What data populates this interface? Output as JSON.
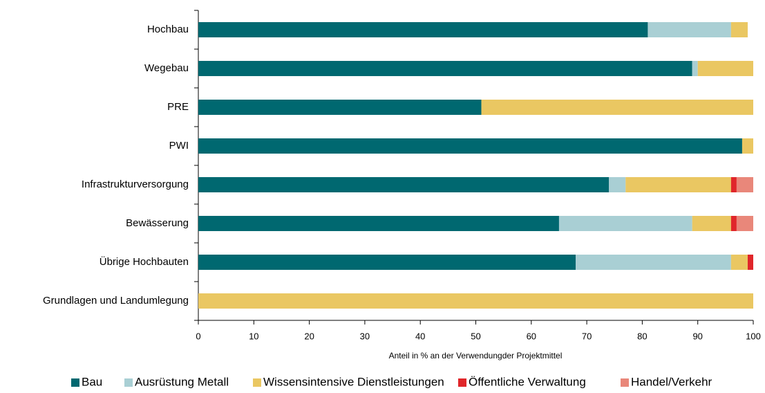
{
  "chart_data": {
    "type": "stacked_barh",
    "xlabel": "Anteil in % an der Verwendungder Projektmittel",
    "categories": [
      "Hochbau",
      "Wegebau",
      "PRE",
      "PWI",
      "Infrastrukturversorgung",
      "Bewässerung",
      "Übrige Hochbauten",
      "Grundlagen und Landumlegung"
    ],
    "series": [
      {
        "name": "Bau",
        "color": "#006870",
        "values": [
          81,
          89,
          51,
          98,
          74,
          65,
          68,
          0
        ]
      },
      {
        "name": "Ausrüstung Metall",
        "color": "#a9cfd4",
        "values": [
          15,
          1,
          0,
          0,
          3,
          24,
          28,
          0
        ]
      },
      {
        "name": "Wissensintensive Dienstleistungen",
        "color": "#eac762",
        "values": [
          3,
          10,
          49,
          2,
          19,
          7,
          3,
          100
        ]
      },
      {
        "name": "Öffentliche Verwaltung",
        "color": "#e0262a",
        "values": [
          0,
          0,
          0,
          0,
          1,
          1,
          1,
          0
        ]
      },
      {
        "name": "Handel/Verkehr",
        "color": "#e9877a",
        "values": [
          0,
          0,
          0,
          0,
          3,
          3,
          0,
          0
        ]
      }
    ],
    "xlim": [
      0,
      100
    ],
    "xticks": [
      0,
      10,
      20,
      30,
      40,
      50,
      60,
      70,
      80,
      90,
      100
    ],
    "legend": "bottom"
  }
}
